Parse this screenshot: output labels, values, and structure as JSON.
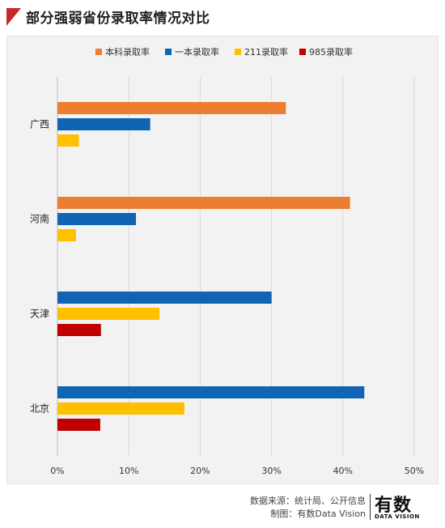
{
  "header": {
    "title": "部分强弱省份录取率情况对比"
  },
  "footer": {
    "source": "数据来源：统计局、公开信息",
    "made_by": "制图：有数Data Vision",
    "logo_cn": "有数",
    "logo_en": "DATA VISION"
  },
  "chart_data": {
    "type": "bar",
    "orientation": "horizontal",
    "categories": [
      "广西",
      "河南",
      "天津",
      "北京"
    ],
    "series": [
      {
        "name": "本科录取率",
        "color": "#ed7d31",
        "values": [
          32,
          41,
          null,
          null
        ]
      },
      {
        "name": "一本录取率",
        "color": "#0f64b4",
        "values": [
          13,
          11,
          30,
          43
        ]
      },
      {
        "name": "211录取率",
        "color": "#ffc000",
        "values": [
          3,
          2.6,
          14.3,
          17.8
        ]
      },
      {
        "name": "985录取率",
        "color": "#c00000",
        "values": [
          null,
          null,
          6.1,
          6
        ]
      }
    ],
    "xlim": [
      0,
      50
    ],
    "xticks": [
      "0%",
      "10%",
      "20%",
      "30%",
      "40%",
      "50%"
    ],
    "tick_step": 10,
    "grid": "vertical",
    "legend_position": "top"
  }
}
